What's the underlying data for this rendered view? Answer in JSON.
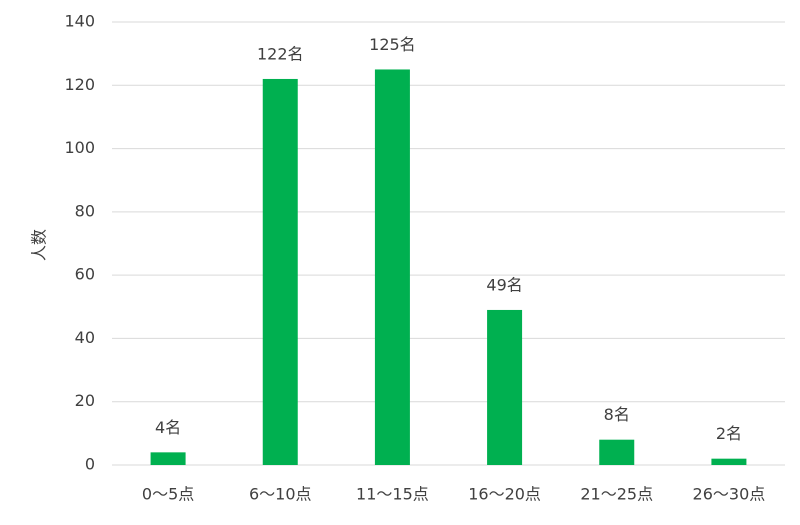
{
  "chart_data": {
    "type": "bar",
    "y_label": "人数",
    "categories": [
      "0〜5点",
      "6〜10点",
      "11〜15点",
      "16〜20点",
      "21〜25点",
      "26〜30点"
    ],
    "values": [
      4,
      122,
      125,
      49,
      8,
      2
    ],
    "value_labels": [
      "4名",
      "122名",
      "125名",
      "49名",
      "8名",
      "2名"
    ],
    "color": "#00b050",
    "ylim": [
      0,
      140
    ],
    "yticks": [
      0,
      20,
      40,
      60,
      80,
      100,
      120,
      140
    ],
    "grid": true
  }
}
